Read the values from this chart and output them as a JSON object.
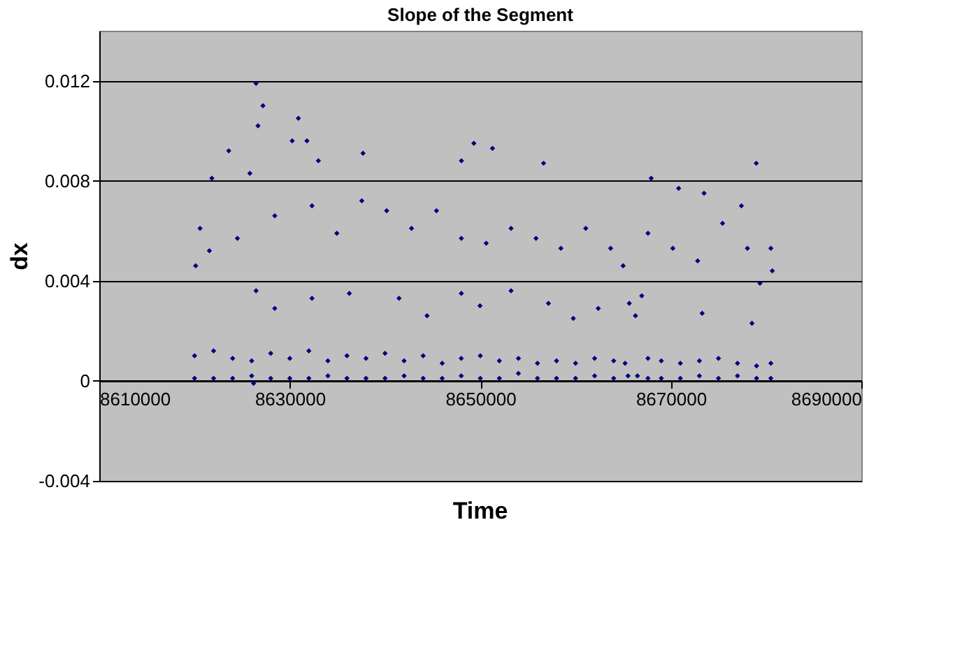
{
  "chart_data": {
    "type": "scatter",
    "title": "Slope of the Segment",
    "xlabel": "Time",
    "ylabel": "dx",
    "xlim": [
      8610000,
      8690000
    ],
    "xticks": [
      8610000,
      8630000,
      8650000,
      8670000,
      8690000
    ],
    "ylim": [
      -0.004,
      0.014
    ],
    "yticks": [
      -0.004,
      0,
      0.004,
      0.008,
      0.012
    ],
    "grid": "y",
    "legend": false,
    "marker": "diamond",
    "series": [
      {
        "color": "#000080",
        "x": [
          8626460,
          8627180,
          8630900,
          8626660,
          8630250,
          8631800,
          8623590,
          8637690,
          8649320,
          8651280,
          8656640,
          8678970,
          8621820,
          8625810,
          8633000,
          8648020,
          8667940,
          8670820,
          8673490,
          8677410,
          8620120,
          8620580,
          8621560,
          8624500,
          8628420,
          8632330,
          8634940,
          8637560,
          8640170,
          8642780,
          8645400,
          8648010,
          8650620,
          8653230,
          8655850,
          8658460,
          8661070,
          8663680,
          8664990,
          8667600,
          8670210,
          8672820,
          8675430,
          8678040,
          8680650,
          8680500,
          8626460,
          8628420,
          8632330,
          8636250,
          8641470,
          8644410,
          8648010,
          8649970,
          8653230,
          8657150,
          8659760,
          8662380,
          8665640,
          8666290,
          8666950,
          8673290,
          8678520,
          8679360,
          8620000,
          8622000,
          8624000,
          8626000,
          8628000,
          8630000,
          8632000,
          8634000,
          8636000,
          8638000,
          8640000,
          8642000,
          8644000,
          8646000,
          8648000,
          8650000,
          8652000,
          8654000,
          8656000,
          8658000,
          8660000,
          8662000,
          8664000,
          8665200,
          8667600,
          8669000,
          8671000,
          8673000,
          8675000,
          8677000,
          8679000,
          8680500,
          8620000,
          8622000,
          8624000,
          8626000,
          8628000,
          8630000,
          8632000,
          8634000,
          8636000,
          8638000,
          8640000,
          8642000,
          8644000,
          8646000,
          8648000,
          8650000,
          8652000,
          8654000,
          8656000,
          8658000,
          8660000,
          8662000,
          8664000,
          8665500,
          8666500,
          8667600,
          8669000,
          8671000,
          8673000,
          8675000,
          8677000,
          8679000,
          8680500,
          8626200
        ],
        "values": [
          0.0119,
          0.011,
          0.0105,
          0.0102,
          0.0096,
          0.0096,
          0.0092,
          0.0091,
          0.0095,
          0.0093,
          0.0087,
          0.0087,
          0.0081,
          0.0083,
          0.0088,
          0.0088,
          0.0081,
          0.0077,
          0.0075,
          0.007,
          0.0046,
          0.0061,
          0.0052,
          0.0057,
          0.0066,
          0.007,
          0.0059,
          0.0072,
          0.0068,
          0.0061,
          0.0068,
          0.0057,
          0.0055,
          0.0061,
          0.0057,
          0.0053,
          0.0061,
          0.0053,
          0.0046,
          0.0059,
          0.0053,
          0.0048,
          0.0063,
          0.0053,
          0.0044,
          0.0053,
          0.0036,
          0.0029,
          0.0033,
          0.0035,
          0.0033,
          0.0026,
          0.0035,
          0.003,
          0.0036,
          0.0031,
          0.0025,
          0.0029,
          0.0031,
          0.0026,
          0.0034,
          0.0027,
          0.0023,
          0.0039,
          0.001,
          0.0012,
          0.0009,
          0.0008,
          0.0011,
          0.0009,
          0.0012,
          0.0008,
          0.001,
          0.0009,
          0.0011,
          0.0008,
          0.001,
          0.0007,
          0.0009,
          0.001,
          0.0008,
          0.0009,
          0.0007,
          0.0008,
          0.0007,
          0.0009,
          0.0008,
          0.0007,
          0.0009,
          0.0008,
          0.0007,
          0.0008,
          0.0009,
          0.0007,
          0.0006,
          0.0007,
          0.0001,
          0.0001,
          0.0001,
          0.0002,
          0.0001,
          0.0001,
          0.0001,
          0.0002,
          0.0001,
          0.0001,
          0.0001,
          0.0002,
          0.0001,
          0.0001,
          0.0002,
          0.0001,
          0.0001,
          0.0003,
          0.0001,
          0.0001,
          0.0001,
          0.0002,
          0.0001,
          0.0002,
          0.0002,
          0.0001,
          0.0001,
          0.0001,
          0.0002,
          0.0001,
          0.0002,
          0.0001,
          0.0001,
          -0.0001
        ]
      }
    ]
  }
}
